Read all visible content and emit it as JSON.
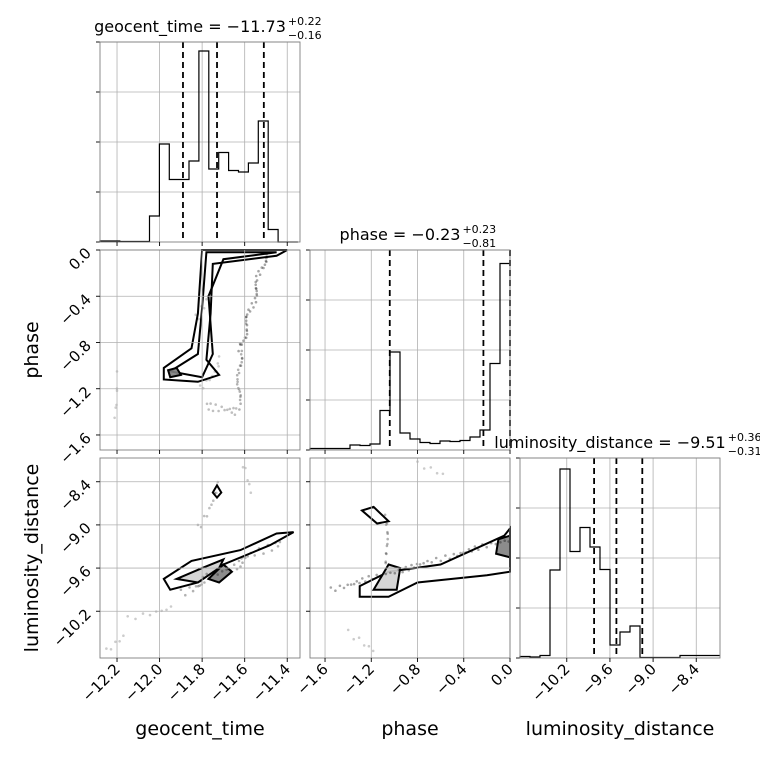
{
  "chart_data": {
    "type": "corner",
    "parameters": [
      {
        "name": "geocent_time",
        "label": "geocent_time",
        "title_prefix": "geocent_time = −11.73",
        "title_plus": "+0.22",
        "title_minus": "−0.16",
        "median": -11.73,
        "err_plus": 0.22,
        "err_minus": 0.16,
        "range": [
          -12.28,
          -11.34
        ],
        "ticks": [
          -12.2,
          -12.0,
          -11.8,
          -11.6,
          -11.4
        ],
        "tick_labels": [
          "−12.2",
          "−12.0",
          "−11.8",
          "−11.6",
          "−11.4"
        ],
        "quantiles": [
          -11.89,
          -11.73,
          -11.51
        ],
        "hist_edges_start": -12.28,
        "hist_bin_width": 0.0465,
        "hist_counts": [
          0.2,
          0.2,
          0.1,
          0.1,
          0.1,
          5.2,
          19.6,
          12.5,
          12.5,
          16.2,
          38.2,
          14.6,
          17.9,
          14.3,
          14.0,
          15.8,
          24.2,
          2.5,
          0,
          0
        ],
        "hist_ymax": 40
      },
      {
        "name": "phase",
        "label": "phase",
        "title_prefix": "phase = −0.23",
        "title_plus": "+0.23",
        "title_minus": "−0.81",
        "median": -0.23,
        "err_plus": 0.23,
        "err_minus": 0.81,
        "range": [
          -1.73,
          0.0
        ],
        "ticks": [
          -1.6,
          -1.2,
          -0.8,
          -0.4,
          0.0
        ],
        "tick_labels": [
          "−1.6",
          "−1.2",
          "−0.8",
          "−0.4",
          "0.0"
        ],
        "quantiles": [
          -1.04,
          -0.23,
          0.0
        ],
        "hist_edges_start": -1.73,
        "hist_bin_width": 0.0865,
        "hist_counts": [
          0.3,
          0.3,
          0.3,
          0.3,
          1.0,
          0.9,
          1.2,
          7.9,
          19.6,
          3.4,
          2.2,
          1.5,
          1.3,
          1.8,
          1.7,
          1.9,
          2.6,
          4.0,
          17.3,
          37.3
        ],
        "hist_ymax": 40
      },
      {
        "name": "luminosity_distance",
        "label": "luminosity_distance",
        "title_prefix": "luminosity_distance = −9.51",
        "title_plus": "+0.36",
        "title_minus": "−0.31",
        "median": -9.51,
        "err_plus": 0.36,
        "err_minus": 0.31,
        "range": [
          -10.85,
          -8.07
        ],
        "ticks": [
          -10.2,
          -9.6,
          -9.0,
          -8.4
        ],
        "tick_labels": [
          "−10.2",
          "−9.6",
          "−9.0",
          "−8.4"
        ],
        "quantiles": [
          -9.82,
          -9.51,
          -9.15
        ],
        "hist_edges_start": -10.85,
        "hist_bin_width": 0.139,
        "hist_counts": [
          0.3,
          0.2,
          0.5,
          17.6,
          37.8,
          21.3,
          26.1,
          22.2,
          17.7,
          2.6,
          5.2,
          6.4,
          0.1,
          0.1,
          0.1,
          0.1,
          0.5,
          0.5,
          0.5,
          0.5
        ],
        "hist_ymax": 40
      }
    ],
    "scatter_color": "#000000",
    "contour_color": "#000000",
    "quantile_lines": "dashed",
    "grid": true
  }
}
